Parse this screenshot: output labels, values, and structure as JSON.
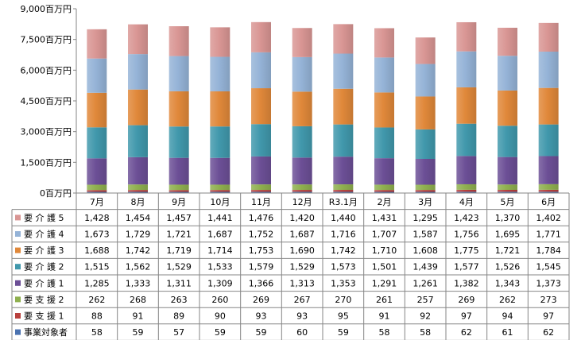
{
  "chart_data": {
    "type": "bar",
    "stacked": true,
    "unit": "百万円",
    "y_ticks": [
      "9,000百万円",
      "7,500百万円",
      "6,000百万円",
      "4,500百万円",
      "3,000百万円",
      "1,500百万円",
      "0百万円"
    ],
    "ylim": [
      0,
      9000
    ],
    "grid": false,
    "legend": "data-table",
    "categories": [
      "7月",
      "8月",
      "9月",
      "10月",
      "11月",
      "12月",
      "R3.1月",
      "2月",
      "3月",
      "4月",
      "5月",
      "6月"
    ],
    "series": [
      {
        "name": "要 介 護 5",
        "color": "#d99694",
        "values": [
          1428,
          1454,
          1457,
          1441,
          1476,
          1420,
          1440,
          1431,
          1295,
          1423,
          1370,
          1402
        ]
      },
      {
        "name": "要 介 護 4",
        "color": "#95b3d7",
        "values": [
          1673,
          1729,
          1721,
          1687,
          1752,
          1687,
          1716,
          1707,
          1587,
          1756,
          1695,
          1771
        ]
      },
      {
        "name": "要 介 護 3",
        "color": "#e0883a",
        "values": [
          1688,
          1742,
          1719,
          1714,
          1753,
          1690,
          1742,
          1710,
          1608,
          1775,
          1721,
          1784
        ]
      },
      {
        "name": "要 介 護 2",
        "color": "#4198ac",
        "values": [
          1515,
          1562,
          1529,
          1533,
          1579,
          1529,
          1573,
          1501,
          1439,
          1577,
          1526,
          1545
        ]
      },
      {
        "name": "要 介 護 1",
        "color": "#6c4f96",
        "values": [
          1285,
          1333,
          1311,
          1309,
          1366,
          1313,
          1353,
          1291,
          1261,
          1382,
          1343,
          1373
        ]
      },
      {
        "name": "要 支 援 2",
        "color": "#8fb04f",
        "values": [
          262,
          268,
          263,
          260,
          269,
          267,
          270,
          261,
          257,
          269,
          262,
          273
        ]
      },
      {
        "name": "要 支 援 1",
        "color": "#b8403d",
        "values": [
          88,
          91,
          89,
          90,
          93,
          93,
          95,
          91,
          92,
          97,
          94,
          97
        ]
      },
      {
        "name": "事業対象者",
        "color": "#4a72b0",
        "values": [
          58,
          59,
          57,
          59,
          59,
          60,
          59,
          58,
          58,
          62,
          61,
          62
        ]
      }
    ]
  }
}
